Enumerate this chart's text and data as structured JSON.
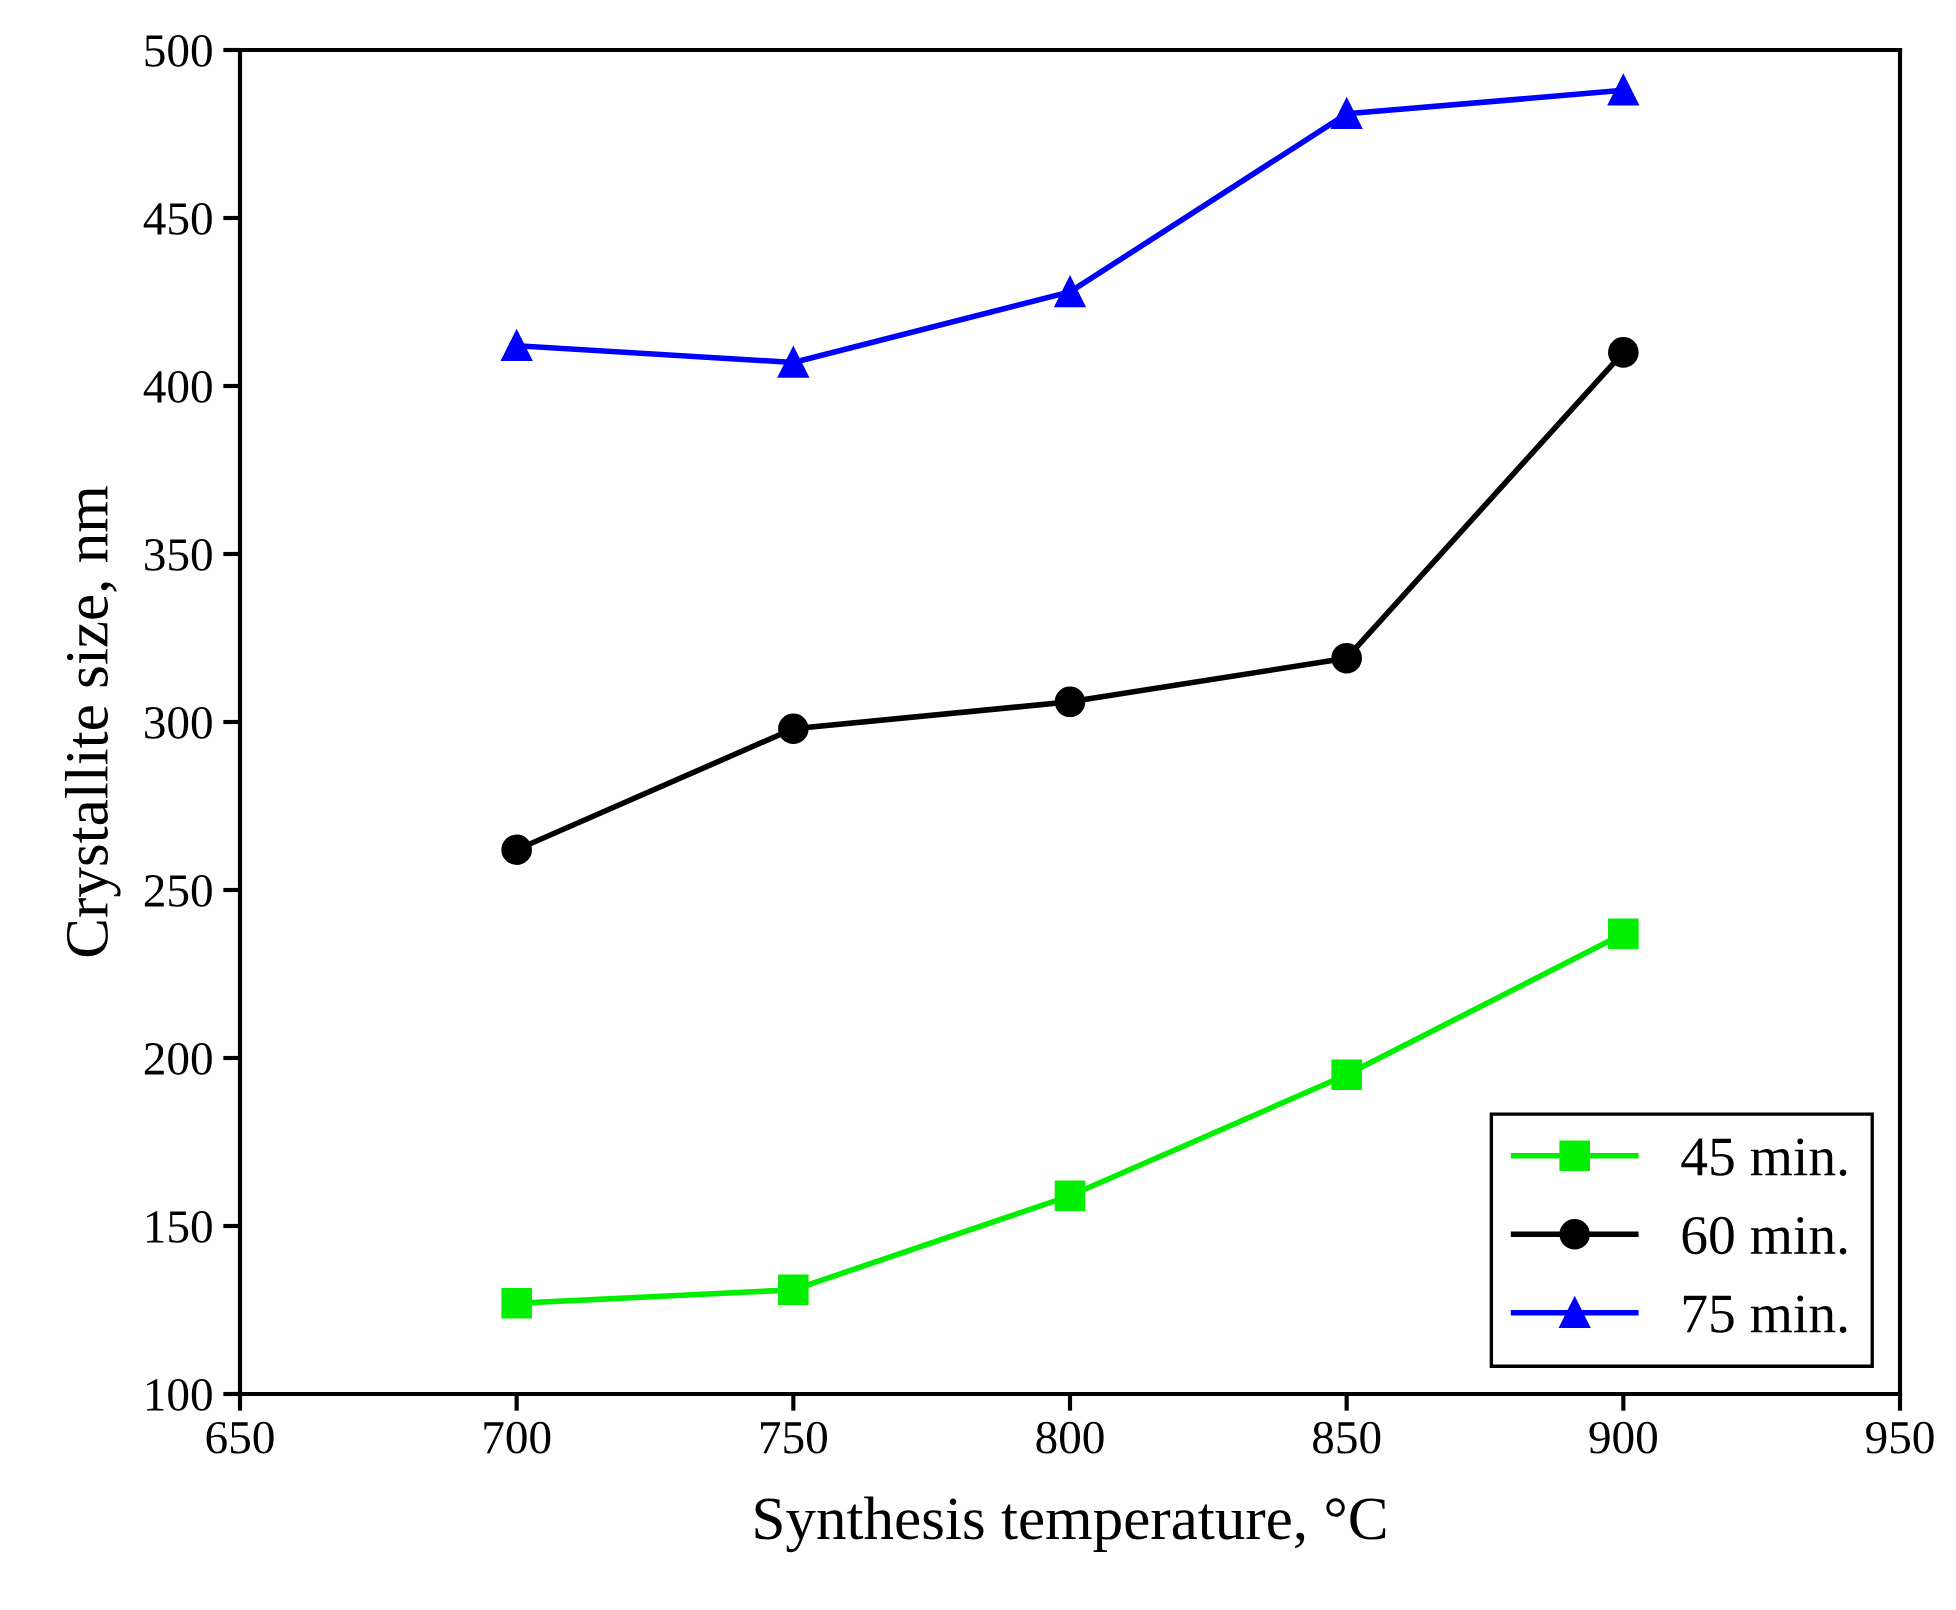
{
  "chart_data": {
    "type": "line",
    "xlabel": "Synthesis temperature, °C",
    "ylabel": "Crystallite size, nm",
    "x": [
      700,
      750,
      800,
      850,
      900
    ],
    "series": [
      {
        "name": "45 min.",
        "color": "#00ee00",
        "marker": "square",
        "values": [
          127,
          131,
          159,
          195,
          237
        ]
      },
      {
        "name": "60 min.",
        "color": "#000000",
        "marker": "circle",
        "values": [
          262,
          298,
          306,
          319,
          410
        ]
      },
      {
        "name": "75 min.",
        "color": "#0000ff",
        "marker": "triangle",
        "values": [
          412,
          407,
          428,
          481,
          488
        ]
      }
    ],
    "xlim": [
      650,
      950
    ],
    "xticks": [
      650,
      700,
      750,
      800,
      850,
      900,
      950
    ],
    "ylim": [
      100,
      500
    ],
    "yticks": [
      100,
      150,
      200,
      250,
      300,
      350,
      400,
      450,
      500
    ],
    "grid": false,
    "legend": "bottom right",
    "line_style": "solid"
  }
}
